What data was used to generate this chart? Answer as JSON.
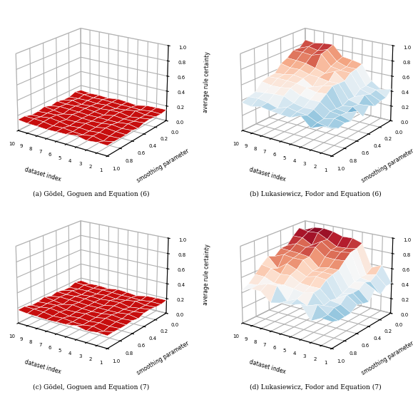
{
  "smoothing_params": [
    0.0,
    0.1,
    0.2,
    0.3,
    0.4,
    0.5,
    0.6,
    0.7,
    0.8,
    0.9,
    1.0
  ],
  "dataset_indices": [
    1,
    2,
    3,
    4,
    5,
    6,
    7,
    8,
    9,
    10
  ],
  "subplot_titles": [
    "(a) Gödel, Goguen and Equation (6)",
    "(b) Lukasiewicz, Fodor and Equation (6)",
    "(c) Gödel, Goguen and Equation (7)",
    "(d) Lukasiewicz, Fodor and Equation (7)"
  ],
  "zlabel": "average rule certainty",
  "xlabel_ds": "dataset index",
  "xlabel_sp": "smoothing parameter",
  "background": "#ffffff"
}
